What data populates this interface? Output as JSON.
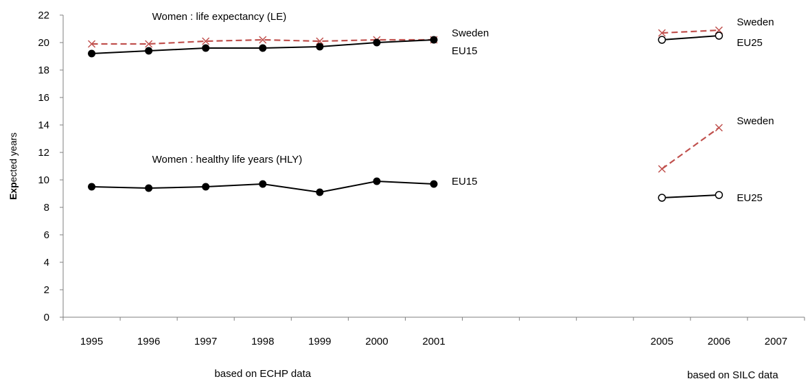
{
  "chart_data": {
    "type": "line",
    "ylabel": "Expected years",
    "ylim": [
      0,
      22
    ],
    "y_ticks": [
      0,
      2,
      4,
      6,
      8,
      10,
      12,
      14,
      16,
      18,
      20,
      22
    ],
    "grid": false,
    "x_categories": [
      "1995",
      "1996",
      "1997",
      "1998",
      "1999",
      "2000",
      "2001",
      "",
      "",
      "",
      "2005",
      "2006",
      "2007"
    ],
    "x_groups": [
      "based on ECHP data",
      "based on SILC data"
    ],
    "annotations": [
      {
        "text": "Women :  life expectancy (LE)",
        "x": "1996",
        "y": 21.9
      },
      {
        "text": "Women : healthy life years (HLY)",
        "x": "1996",
        "y": 11.5
      }
    ],
    "series": [
      {
        "name": "Sweden",
        "group": "LE",
        "style": "dashed-cross",
        "color": "#c0504d",
        "x": [
          "1995",
          "1996",
          "1997",
          "1998",
          "1999",
          "2000",
          "2001"
        ],
        "values": [
          19.9,
          19.9,
          20.1,
          20.2,
          20.1,
          20.2,
          20.2
        ],
        "label_x": "2001",
        "label_y": 20.7
      },
      {
        "name": "EU15",
        "group": "LE",
        "style": "solid-filled",
        "color": "#000000",
        "x": [
          "1995",
          "1996",
          "1997",
          "1998",
          "1999",
          "2000",
          "2001"
        ],
        "values": [
          19.2,
          19.4,
          19.6,
          19.6,
          19.7,
          20.0,
          20.2
        ],
        "label_x": "2001",
        "label_y": 19.4
      },
      {
        "name": "EU15",
        "group": "HLY",
        "style": "solid-filled",
        "color": "#000000",
        "x": [
          "1995",
          "1996",
          "1997",
          "1998",
          "1999",
          "2000",
          "2001"
        ],
        "values": [
          9.5,
          9.4,
          9.5,
          9.7,
          9.1,
          9.9,
          9.7
        ],
        "label_x": "2001",
        "label_y": 9.9
      },
      {
        "name": "Sweden",
        "group": "LE",
        "style": "dashed-cross",
        "color": "#c0504d",
        "x": [
          "2005",
          "2006"
        ],
        "values": [
          20.7,
          20.9
        ],
        "label_x": "2006",
        "label_y": 21.5
      },
      {
        "name": "EU25",
        "group": "LE",
        "style": "solid-open",
        "color": "#000000",
        "x": [
          "2005",
          "2006"
        ],
        "values": [
          20.2,
          20.5
        ],
        "label_x": "2006",
        "label_y": 20.0
      },
      {
        "name": "Sweden",
        "group": "HLY",
        "style": "dashed-cross",
        "color": "#c0504d",
        "x": [
          "2005",
          "2006"
        ],
        "values": [
          10.8,
          13.8
        ],
        "label_x": "2006",
        "label_y": 14.3
      },
      {
        "name": "EU25",
        "group": "HLY",
        "style": "solid-open",
        "color": "#000000",
        "x": [
          "2005",
          "2006"
        ],
        "values": [
          8.7,
          8.9
        ],
        "label_x": "2006",
        "label_y": 8.7
      }
    ]
  }
}
